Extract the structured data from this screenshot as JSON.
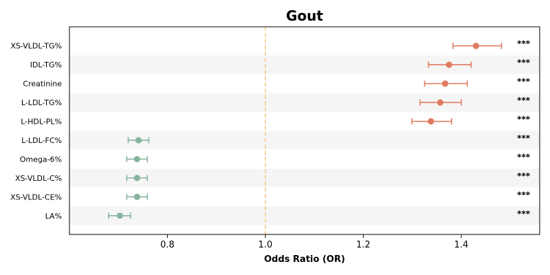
{
  "chart_data": {
    "type": "forest",
    "title": "Gout",
    "xlabel": "Odds Ratio (OR)",
    "xlim": [
      0.6,
      1.56
    ],
    "xticks": [
      "0.8",
      "1.0",
      "1.2",
      "1.4"
    ],
    "reference_line": 1.0,
    "rows": [
      {
        "label": "XS-VLDL-TG%",
        "or": 1.43,
        "lower": 1.383,
        "upper": 1.482,
        "sig": "***",
        "direction": "up"
      },
      {
        "label": "IDL-TG%",
        "or": 1.375,
        "lower": 1.333,
        "upper": 1.42,
        "sig": "***",
        "direction": "up"
      },
      {
        "label": "Creatinine",
        "or": 1.367,
        "lower": 1.325,
        "upper": 1.412,
        "sig": "***",
        "direction": "up"
      },
      {
        "label": "L-LDL-TG%",
        "or": 1.357,
        "lower": 1.316,
        "upper": 1.4,
        "sig": "***",
        "direction": "up"
      },
      {
        "label": "L-HDL-PL%",
        "or": 1.338,
        "lower": 1.299,
        "upper": 1.38,
        "sig": "***",
        "direction": "up"
      },
      {
        "label": "L-LDL-FC%",
        "or": 0.741,
        "lower": 0.72,
        "upper": 0.762,
        "sig": "***",
        "direction": "down"
      },
      {
        "label": "Omega-6%",
        "or": 0.738,
        "lower": 0.717,
        "upper": 0.759,
        "sig": "***",
        "direction": "down"
      },
      {
        "label": "XS-VLDL-C%",
        "or": 0.738,
        "lower": 0.717,
        "upper": 0.759,
        "sig": "***",
        "direction": "down"
      },
      {
        "label": "XS-VLDL-CE%",
        "or": 0.738,
        "lower": 0.717,
        "upper": 0.759,
        "sig": "***",
        "direction": "down"
      },
      {
        "label": "LA%",
        "or": 0.703,
        "lower": 0.68,
        "upper": 0.725,
        "sig": "***",
        "direction": "down"
      }
    ],
    "colors": {
      "up": "#e07b5f",
      "down": "#86b59d",
      "reference": "#f7c98c",
      "band": "#f5f5f5"
    },
    "grid": false,
    "legend": "none"
  }
}
